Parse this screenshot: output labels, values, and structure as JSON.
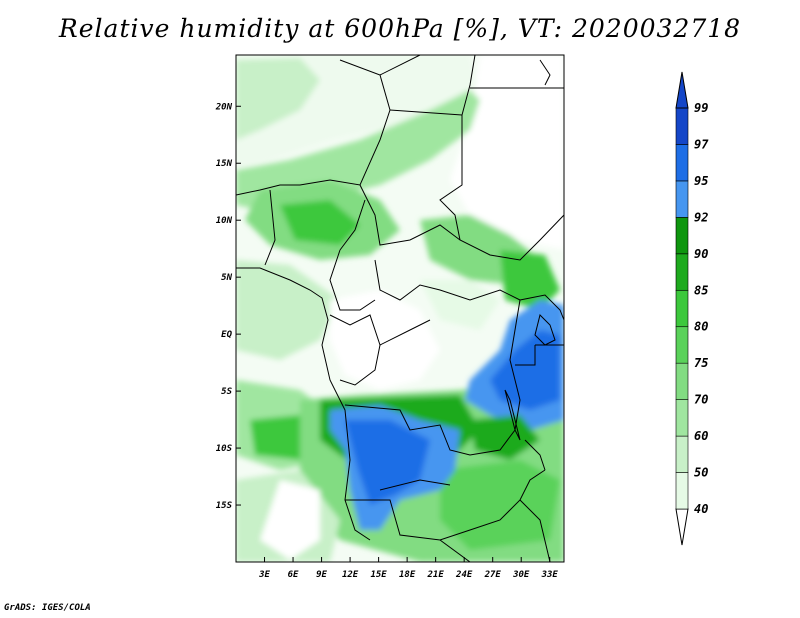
{
  "title": "Relative humidity at 600hPa [%], VT: 2020032718",
  "credit": "GrADS: IGES/COLA",
  "map": {
    "lon_ticks": [
      "3E",
      "6E",
      "9E",
      "12E",
      "15E",
      "18E",
      "21E",
      "24E",
      "27E",
      "30E",
      "33E"
    ],
    "lat_ticks": [
      "20N",
      "15N",
      "10N",
      "5N",
      "EQ",
      "5S",
      "10S",
      "15S"
    ],
    "lon_range": [
      0,
      34.5
    ],
    "lat_range": [
      -20,
      24.5
    ],
    "lon_values": [
      3,
      6,
      9,
      12,
      15,
      18,
      21,
      24,
      27,
      30,
      33
    ],
    "lat_values": [
      20,
      15,
      10,
      5,
      0,
      -5,
      -10,
      -15
    ]
  },
  "colorbar": {
    "levels": [
      "40",
      "50",
      "60",
      "70",
      "75",
      "80",
      "85",
      "90",
      "92",
      "95",
      "97",
      "99"
    ],
    "colors": [
      "#ffffff",
      "#e6fae6",
      "#c8f0c8",
      "#a0e6a0",
      "#82dc82",
      "#5ad25a",
      "#3cc83c",
      "#1eaa1e",
      "#0f960f",
      "#4696f0",
      "#1e6ee6",
      "#1446c8"
    ]
  }
}
